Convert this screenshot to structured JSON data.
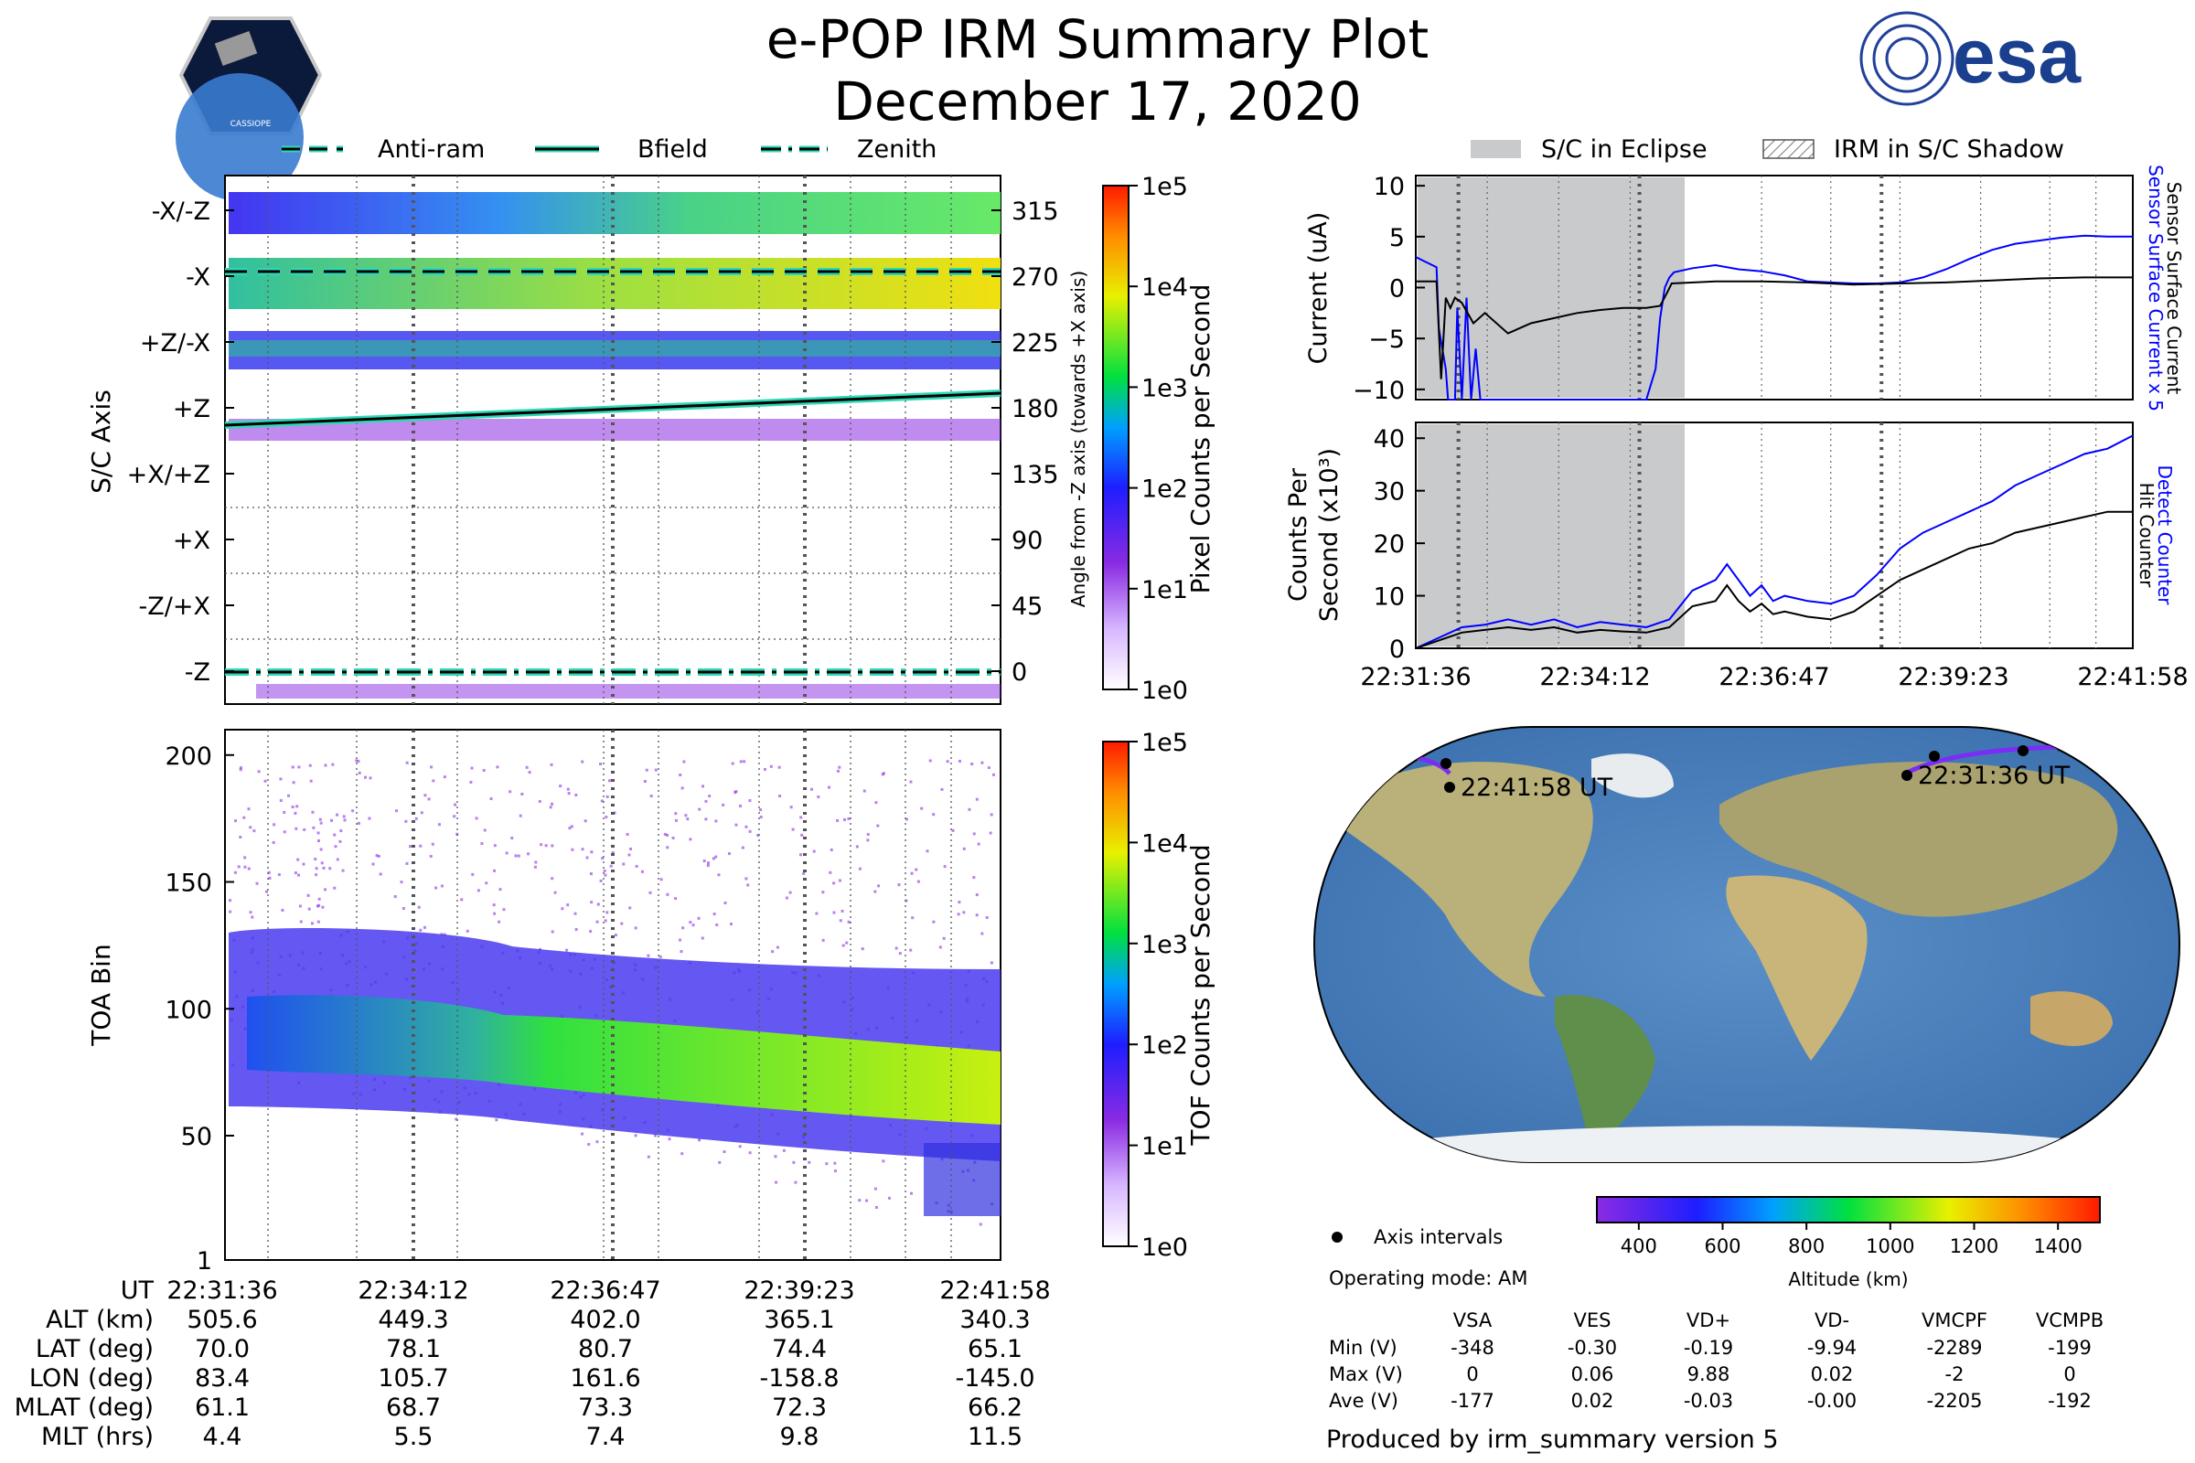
{
  "header": {
    "title": "e-POP IRM Summary Plot",
    "date": "December 17, 2020",
    "left_logo_label": "CASSIOPE",
    "right_logo_label": "esa"
  },
  "colors": {
    "bfield": "#000000",
    "bfield_outline": "#2ed8b6",
    "eclipse": "#c8cacb",
    "sensor_current": "#0000ff",
    "counter": "#000000",
    "orbit": "#7b2cf5"
  },
  "legend_top_left": [
    "Anti-ram",
    "Bfield",
    "Zenith"
  ],
  "legend_top_right": [
    "S/C in Eclipse",
    "IRM in S/C Shadow"
  ],
  "chart_data": [
    {
      "id": "sc_axis",
      "type": "heatmap",
      "ylabel": "S/C Axis",
      "y2label": "Angle from -Z axis (towards +X axis)",
      "axis_labels": [
        "-X/-Z",
        "-X",
        "+Z/-X",
        "+Z",
        "+X/+Z",
        "+X",
        "-Z/+X",
        "-Z"
      ],
      "angle_ticks": [
        "315",
        "270",
        "225",
        "180",
        "135",
        "90",
        "45",
        "0"
      ],
      "ylim": [
        -15,
        345
      ],
      "xlim": [
        0,
        622
      ],
      "cbar_label": "Pixel Counts per Second",
      "cbar_ticks": [
        "1e5",
        "1e4",
        "1e3",
        "1e2",
        "1e1",
        "1e0"
      ],
      "lines": [
        {
          "name": "Anti-ram",
          "style": "dashed",
          "y": [
            272,
            272
          ]
        },
        {
          "name": "Bfield",
          "style": "solid",
          "y": [
            166,
            190
          ]
        },
        {
          "name": "Zenith",
          "style": "dashdot",
          "y": [
            1,
            1
          ]
        }
      ]
    },
    {
      "id": "toa",
      "type": "heatmap",
      "ylabel": "TOA Bin",
      "yticks": [
        "200",
        "150",
        "100",
        "50",
        "1"
      ],
      "ylim": [
        1,
        210
      ],
      "cbar_label": "TOF Counts per Second",
      "cbar_ticks": [
        "1e5",
        "1e4",
        "1e3",
        "1e2",
        "1e1",
        "1e0"
      ]
    },
    {
      "id": "current",
      "type": "line",
      "ylabel": "Current (uA)",
      "yticks": [
        "10",
        "5",
        "0",
        "−5",
        "−10"
      ],
      "ylim": [
        -11,
        11
      ],
      "xlim": [
        0,
        622
      ],
      "eclipse": [
        0,
        222
      ],
      "right_labels": [
        "Sensor Surface Current x 5",
        "Sensor Surface Current"
      ],
      "series": [
        {
          "name": "Sensor Surface Current x 5",
          "color": "#0000ff",
          "x": [
            0,
            18,
            20,
            26,
            28,
            34,
            36,
            40,
            44,
            48,
            52,
            56,
            58,
            62,
            64,
            70,
            200,
            208,
            212,
            216,
            220,
            224,
            240,
            260,
            280,
            300,
            320,
            340,
            360,
            380,
            400,
            420,
            440,
            460,
            480,
            500,
            520,
            540,
            560,
            580,
            600,
            622
          ],
          "y": [
            3,
            2,
            -4,
            -8,
            -11,
            -11,
            -2,
            -11,
            -1,
            -11,
            -6,
            -11,
            -11,
            -11,
            -11,
            -11,
            -11,
            -8,
            -3,
            0,
            1,
            1.5,
            1.9,
            2.2,
            1.8,
            1.6,
            1.2,
            0.6,
            0.5,
            0.4,
            0.4,
            0.5,
            1.0,
            1.8,
            2.8,
            3.7,
            4.3,
            4.6,
            4.9,
            5.1,
            5.0,
            5.0
          ]
        },
        {
          "name": "Sensor Surface Current",
          "color": "#000000",
          "x": [
            0,
            18,
            22,
            26,
            30,
            34,
            40,
            50,
            60,
            80,
            100,
            120,
            140,
            160,
            180,
            200,
            212,
            218,
            222,
            260,
            300,
            340,
            380,
            420,
            460,
            500,
            540,
            580,
            622
          ],
          "y": [
            0.6,
            0.6,
            -9,
            -1,
            -2,
            -1,
            -1.5,
            -3.5,
            -2.5,
            -4.5,
            -3.5,
            -3,
            -2.5,
            -2.2,
            -2.0,
            -2.0,
            -1.8,
            -0.5,
            0.4,
            0.6,
            0.6,
            0.5,
            0.3,
            0.4,
            0.5,
            0.7,
            0.9,
            1.0,
            1.0
          ]
        }
      ]
    },
    {
      "id": "counts",
      "type": "line",
      "ylabel": "Counts Per Second (x10³)",
      "yticks": [
        "40",
        "30",
        "20",
        "10",
        "0"
      ],
      "ylim": [
        0,
        43
      ],
      "xlim": [
        0,
        622
      ],
      "eclipse": [
        0,
        222
      ],
      "xticks": [
        "22:31:36",
        "22:34:12",
        "22:36:47",
        "22:39:23",
        "22:41:58"
      ],
      "right_labels": [
        "Detect Counter",
        "Hit Counter"
      ],
      "series": [
        {
          "name": "Detect Counter",
          "color": "#0000ff",
          "x": [
            0,
            20,
            40,
            60,
            80,
            100,
            120,
            140,
            160,
            180,
            200,
            220,
            240,
            260,
            270,
            280,
            290,
            300,
            310,
            320,
            340,
            360,
            380,
            400,
            420,
            440,
            460,
            480,
            500,
            520,
            540,
            560,
            580,
            600,
            622
          ],
          "y": [
            0,
            2,
            4,
            4.5,
            5.5,
            4.5,
            5.5,
            4,
            5,
            4.5,
            4,
            5.5,
            11,
            13,
            16,
            13,
            10,
            12,
            9,
            10,
            9,
            8.5,
            10,
            14,
            19,
            22,
            24,
            26,
            28,
            31,
            33,
            35,
            37,
            38,
            40.5
          ]
        },
        {
          "name": "Hit Counter",
          "color": "#000000",
          "x": [
            0,
            20,
            40,
            60,
            80,
            100,
            120,
            140,
            160,
            180,
            200,
            220,
            240,
            260,
            270,
            280,
            290,
            300,
            310,
            320,
            340,
            360,
            380,
            400,
            420,
            440,
            460,
            480,
            500,
            520,
            540,
            560,
            580,
            600,
            622
          ],
          "y": [
            0,
            1.5,
            3,
            3.5,
            4,
            3.5,
            4,
            3,
            3.5,
            3.2,
            3,
            4,
            8,
            9,
            12,
            9,
            7,
            8.5,
            6.5,
            7,
            6,
            5.5,
            7,
            10,
            13,
            15,
            17,
            19,
            20,
            22,
            23,
            24,
            25,
            26,
            26
          ]
        }
      ]
    },
    {
      "id": "altitude_colorbar",
      "type": "colorbar",
      "xlabel": "Altitude (km)",
      "ticks": [
        "400",
        "600",
        "800",
        "1000",
        "1200",
        "1400"
      ],
      "range": [
        300,
        1500
      ]
    }
  ],
  "map": {
    "start_label": "22:31:36 UT",
    "end_label": "22:41:58 UT",
    "legend_axis_intervals": "Axis intervals",
    "operating_mode": "Operating mode: AM"
  },
  "time_table": {
    "rows": [
      {
        "label": "UT",
        "values": [
          "22:31:36",
          "22:34:12",
          "22:36:47",
          "22:39:23",
          "22:41:58"
        ]
      },
      {
        "label": "ALT (km)",
        "values": [
          "505.6",
          "449.3",
          "402.0",
          "365.1",
          "340.3"
        ]
      },
      {
        "label": "LAT (deg)",
        "values": [
          "70.0",
          "78.1",
          "80.7",
          "74.4",
          "65.1"
        ]
      },
      {
        "label": "LON (deg)",
        "values": [
          "83.4",
          "105.7",
          "161.6",
          "-158.8",
          "-145.0"
        ]
      },
      {
        "label": "MLAT (deg)",
        "values": [
          "61.1",
          "68.7",
          "73.3",
          "72.3",
          "66.2"
        ]
      },
      {
        "label": "MLT (hrs)",
        "values": [
          "4.4",
          "5.5",
          "7.4",
          "9.8",
          "11.5"
        ]
      }
    ]
  },
  "voltage_table": {
    "headers": [
      "VSA",
      "VES",
      "VD+",
      "VD-",
      "VMCPF",
      "VCMPB"
    ],
    "rows": [
      {
        "label": "Min (V)",
        "values": [
          "-348",
          "-0.30",
          "-0.19",
          "-9.94",
          "-2289",
          "-199"
        ]
      },
      {
        "label": "Max (V)",
        "values": [
          "0",
          "0.06",
          "9.88",
          "0.02",
          "-2",
          "0"
        ]
      },
      {
        "label": "Ave (V)",
        "values": [
          "-177",
          "0.02",
          "-0.03",
          "-0.00",
          "-2205",
          "-192"
        ]
      }
    ]
  },
  "footer": "Produced by irm_summary version 5"
}
